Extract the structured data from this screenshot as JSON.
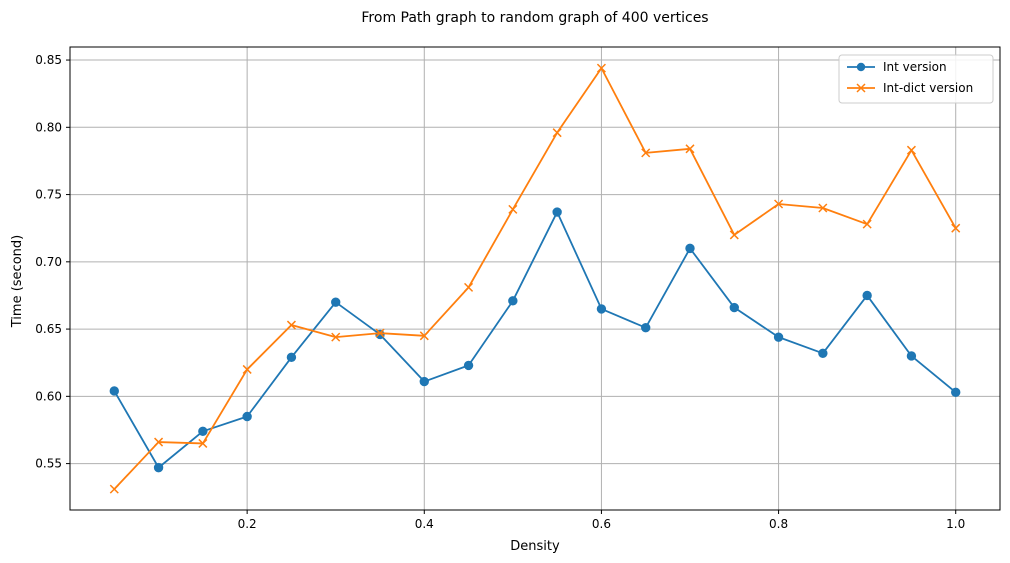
{
  "chart_data": {
    "type": "line",
    "title": "From Path graph to random graph of 400 vertices",
    "xlabel": "Density",
    "ylabel": "Time (second)",
    "xlim": [
      0.0,
      1.05
    ],
    "ylim": [
      0.5155,
      0.8597
    ],
    "xticks": [
      0.2,
      0.4,
      0.6,
      0.8,
      1.0
    ],
    "xtick_labels": [
      "0.2",
      "0.4",
      "0.6",
      "0.8",
      "1.0"
    ],
    "yticks": [
      0.55,
      0.6,
      0.65,
      0.7,
      0.75,
      0.8,
      0.85
    ],
    "ytick_labels": [
      "0.55",
      "0.60",
      "0.65",
      "0.70",
      "0.75",
      "0.80",
      "0.85"
    ],
    "grid": true,
    "legend_position": "top-right",
    "x": [
      0.05,
      0.1,
      0.15,
      0.2,
      0.25,
      0.3,
      0.35,
      0.4,
      0.45,
      0.5,
      0.55,
      0.6,
      0.65,
      0.7,
      0.75,
      0.8,
      0.85,
      0.9,
      0.95,
      1.0
    ],
    "series": [
      {
        "name": "Int version",
        "color": "#1f77b4",
        "marker": "circle",
        "values": [
          0.604,
          0.547,
          0.574,
          0.585,
          0.629,
          0.67,
          0.646,
          0.611,
          0.623,
          0.671,
          0.737,
          0.665,
          0.651,
          0.71,
          0.666,
          0.644,
          0.632,
          0.675,
          0.63,
          0.603
        ]
      },
      {
        "name": "Int-dict version",
        "color": "#ff7f0e",
        "marker": "x",
        "values": [
          0.531,
          0.566,
          0.565,
          0.62,
          0.653,
          0.644,
          0.647,
          0.645,
          0.681,
          0.739,
          0.796,
          0.844,
          0.781,
          0.784,
          0.72,
          0.743,
          0.74,
          0.728,
          0.783,
          0.725
        ]
      }
    ]
  }
}
